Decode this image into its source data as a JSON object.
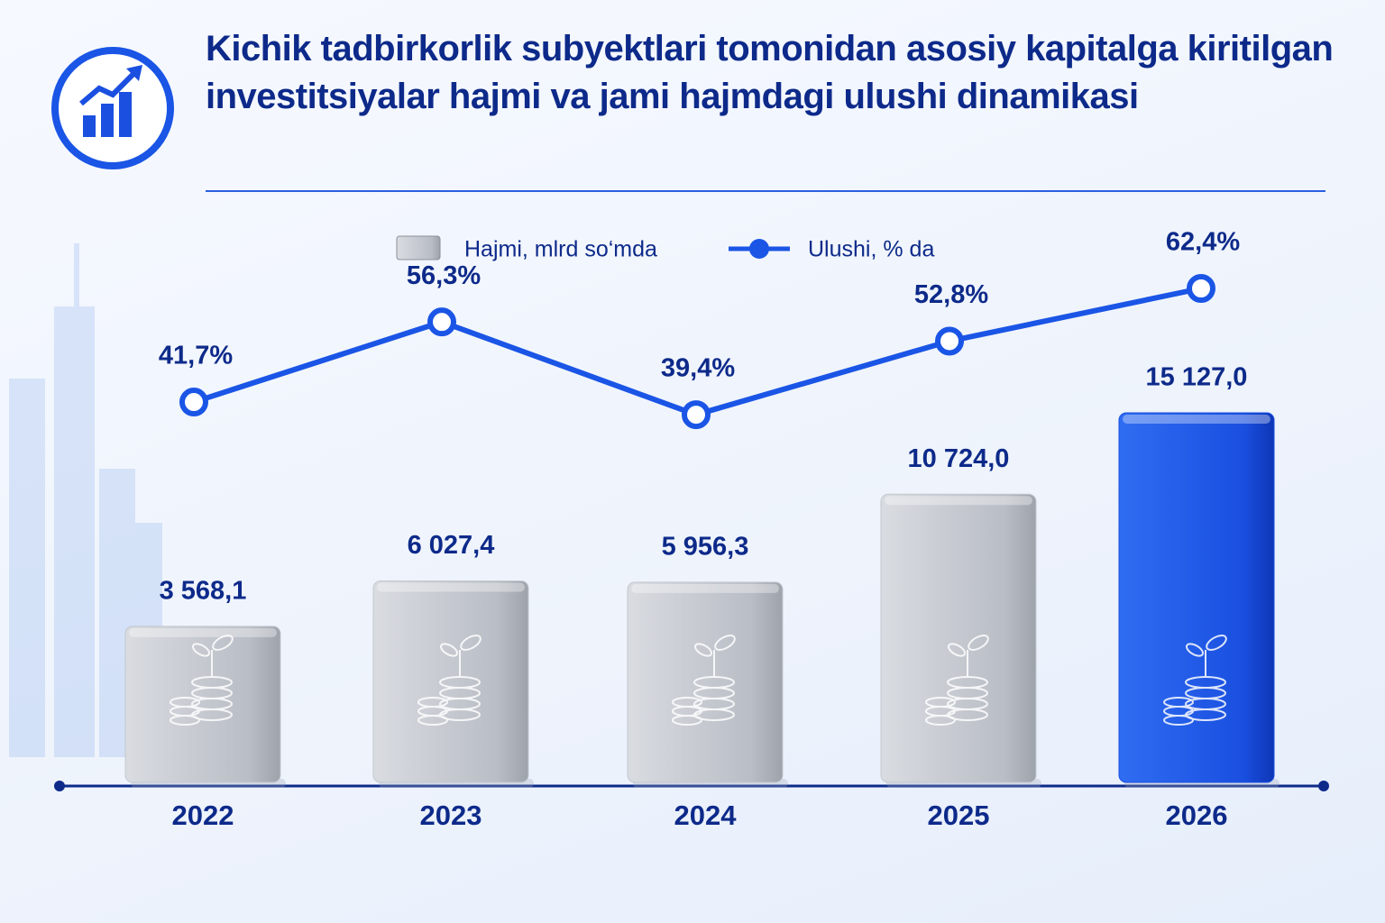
{
  "chart_data": {
    "type": "bar",
    "title": "Kichik tadbirkorlik subyektlari tomonidan asosiy kapitalga kiritilgan investitsiyalar hajmi va jami hajmdagi ulushi dinamikasi",
    "categories": [
      "2022",
      "2023",
      "2024",
      "2025",
      "2026"
    ],
    "series": [
      {
        "name": "Hajmi, mlrd so‘mda",
        "type": "bar",
        "color": "#c4c8cf",
        "colors": [
          "#c4c8cf",
          "#c4c8cf",
          "#c4c8cf",
          "#c4c8cf",
          "#1a4fe0"
        ],
        "values": [
          3568.1,
          6027.4,
          5956.3,
          10724.0,
          15127.0
        ],
        "value_labels": [
          "3 568,1",
          "6 027,4",
          "5 956,3",
          "10 724,0",
          "15 127,0"
        ]
      },
      {
        "name": "Ulushi, % da",
        "type": "line",
        "color": "#1a55e6",
        "values": [
          41.7,
          56.3,
          39.4,
          52.8,
          62.4
        ],
        "value_labels": [
          "41,7%",
          "56,3%",
          "39,4%",
          "52,8%",
          "62,4%"
        ]
      }
    ]
  }
}
